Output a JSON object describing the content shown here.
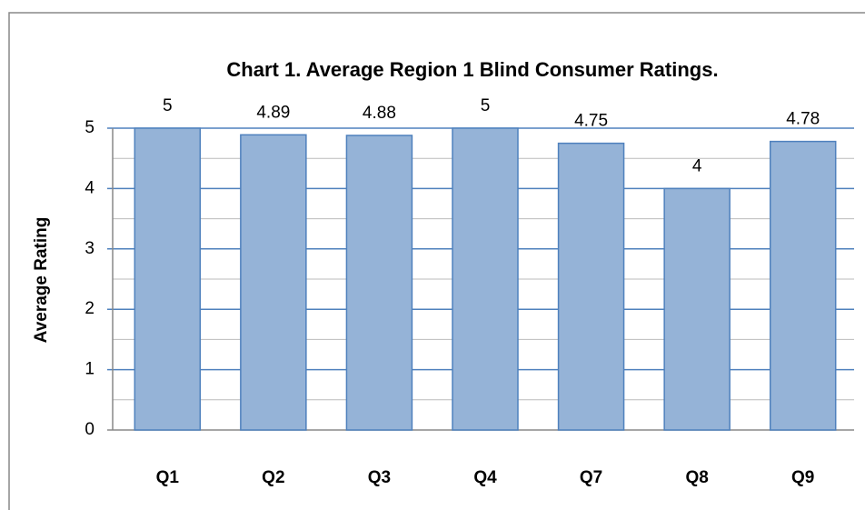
{
  "chart_data": {
    "type": "bar",
    "title": "Chart 1.  Average Region 1 Blind Consumer Ratings.",
    "y_label": "Average Rating",
    "categories": [
      "Q1",
      "Q2",
      "Q3",
      "Q4",
      "Q7",
      "Q8",
      "Q9"
    ],
    "values": [
      5,
      4.89,
      4.88,
      5,
      4.75,
      4,
      4.78
    ],
    "color": "#95b3d7",
    "edge_color": "#4f81bd",
    "ylim": [
      0,
      5
    ],
    "yticks": [
      0,
      1,
      2,
      3,
      4,
      5
    ],
    "grid": true,
    "minor_grid": true
  }
}
